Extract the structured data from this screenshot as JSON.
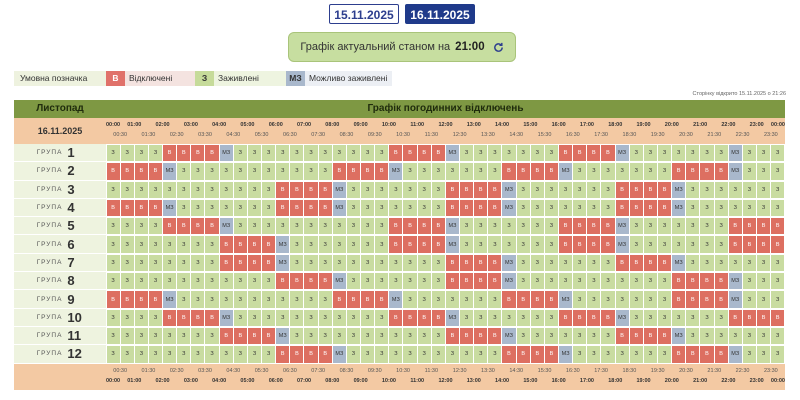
{
  "tabs": [
    {
      "label": "15.11.2025",
      "active": false
    },
    {
      "label": "16.11.2025",
      "active": true
    }
  ],
  "banner": {
    "text": "Графік актуальний станом на",
    "time": "21:00"
  },
  "legend": {
    "caption": "Умовна позначка",
    "off": {
      "symbol": "В",
      "label": "Відключені"
    },
    "on": {
      "symbol": "З",
      "label": "Заживлені"
    },
    "maybe": {
      "symbol": "МЗ",
      "label": "Можливо заживлені"
    }
  },
  "updated": "Сторінку відкрито 15.11.2025 о 21:26",
  "header": {
    "month": "Листопад",
    "title": "Графік погодинних відключень"
  },
  "date_label": "16.11.2025",
  "group_word": "ГРУПА",
  "hours": [
    "00:00",
    "01:00",
    "02:00",
    "03:00",
    "04:00",
    "05:00",
    "06:00",
    "07:00",
    "08:00",
    "09:00",
    "10:00",
    "11:00",
    "12:00",
    "13:00",
    "14:00",
    "15:00",
    "16:00",
    "17:00",
    "18:00",
    "19:00",
    "20:00",
    "21:00",
    "22:00",
    "23:00",
    "00:00"
  ],
  "halves": [
    "00:30",
    "01:30",
    "02:30",
    "03:30",
    "04:30",
    "05:30",
    "06:30",
    "07:30",
    "08:30",
    "09:30",
    "10:30",
    "11:30",
    "12:30",
    "13:30",
    "14:30",
    "15:30",
    "16:30",
    "17:30",
    "18:30",
    "19:30",
    "20:30",
    "21:30",
    "22:30",
    "23:30"
  ],
  "colors": {
    "on": "#c9dca1",
    "off": "#dd6f61",
    "maybe": "#a9b8cc",
    "header": "#7e9843",
    "time_row": "#f3c9a3"
  },
  "groups": [
    {
      "name": "1",
      "slots": [
        [
          0,
          4,
          "on"
        ],
        [
          4,
          8,
          "off"
        ],
        [
          8,
          9,
          "maybe"
        ],
        [
          9,
          20,
          "on"
        ],
        [
          20,
          24,
          "off"
        ],
        [
          24,
          25,
          "maybe"
        ],
        [
          25,
          32,
          "on"
        ],
        [
          32,
          36,
          "off"
        ],
        [
          36,
          37,
          "maybe"
        ],
        [
          37,
          44,
          "on"
        ],
        [
          44,
          45,
          "maybe"
        ],
        [
          45,
          48,
          "on"
        ]
      ]
    },
    {
      "name": "2",
      "slots": [
        [
          0,
          4,
          "off"
        ],
        [
          4,
          5,
          "maybe"
        ],
        [
          5,
          16,
          "on"
        ],
        [
          16,
          20,
          "off"
        ],
        [
          20,
          21,
          "maybe"
        ],
        [
          21,
          28,
          "on"
        ],
        [
          28,
          32,
          "off"
        ],
        [
          32,
          33,
          "maybe"
        ],
        [
          33,
          40,
          "on"
        ],
        [
          40,
          44,
          "off"
        ],
        [
          44,
          45,
          "maybe"
        ],
        [
          45,
          48,
          "on"
        ]
      ]
    },
    {
      "name": "3",
      "slots": [
        [
          0,
          12,
          "on"
        ],
        [
          12,
          16,
          "off"
        ],
        [
          16,
          17,
          "maybe"
        ],
        [
          17,
          24,
          "on"
        ],
        [
          24,
          28,
          "off"
        ],
        [
          28,
          29,
          "maybe"
        ],
        [
          29,
          36,
          "on"
        ],
        [
          36,
          40,
          "off"
        ],
        [
          40,
          41,
          "maybe"
        ],
        [
          41,
          48,
          "on"
        ]
      ]
    },
    {
      "name": "4",
      "slots": [
        [
          0,
          4,
          "off"
        ],
        [
          4,
          5,
          "maybe"
        ],
        [
          5,
          12,
          "on"
        ],
        [
          12,
          16,
          "off"
        ],
        [
          16,
          17,
          "maybe"
        ],
        [
          17,
          24,
          "on"
        ],
        [
          24,
          28,
          "off"
        ],
        [
          28,
          29,
          "maybe"
        ],
        [
          29,
          36,
          "on"
        ],
        [
          36,
          40,
          "off"
        ],
        [
          40,
          41,
          "maybe"
        ],
        [
          41,
          48,
          "on"
        ]
      ]
    },
    {
      "name": "5",
      "slots": [
        [
          0,
          4,
          "on"
        ],
        [
          4,
          8,
          "off"
        ],
        [
          8,
          9,
          "maybe"
        ],
        [
          9,
          20,
          "on"
        ],
        [
          20,
          24,
          "off"
        ],
        [
          24,
          25,
          "maybe"
        ],
        [
          25,
          32,
          "on"
        ],
        [
          32,
          36,
          "off"
        ],
        [
          36,
          37,
          "maybe"
        ],
        [
          37,
          44,
          "on"
        ],
        [
          44,
          48,
          "off"
        ]
      ]
    },
    {
      "name": "6",
      "slots": [
        [
          0,
          8,
          "on"
        ],
        [
          8,
          12,
          "off"
        ],
        [
          12,
          13,
          "maybe"
        ],
        [
          13,
          20,
          "on"
        ],
        [
          20,
          24,
          "off"
        ],
        [
          24,
          25,
          "maybe"
        ],
        [
          25,
          32,
          "on"
        ],
        [
          32,
          36,
          "off"
        ],
        [
          36,
          37,
          "maybe"
        ],
        [
          37,
          44,
          "on"
        ],
        [
          44,
          48,
          "off"
        ]
      ]
    },
    {
      "name": "7",
      "slots": [
        [
          0,
          8,
          "on"
        ],
        [
          8,
          12,
          "off"
        ],
        [
          12,
          13,
          "maybe"
        ],
        [
          13,
          24,
          "on"
        ],
        [
          24,
          28,
          "off"
        ],
        [
          28,
          29,
          "maybe"
        ],
        [
          29,
          36,
          "on"
        ],
        [
          36,
          40,
          "off"
        ],
        [
          40,
          41,
          "maybe"
        ],
        [
          41,
          48,
          "on"
        ]
      ]
    },
    {
      "name": "8",
      "slots": [
        [
          0,
          12,
          "on"
        ],
        [
          12,
          16,
          "off"
        ],
        [
          16,
          17,
          "maybe"
        ],
        [
          17,
          24,
          "on"
        ],
        [
          24,
          28,
          "off"
        ],
        [
          28,
          29,
          "maybe"
        ],
        [
          29,
          40,
          "on"
        ],
        [
          40,
          44,
          "off"
        ],
        [
          44,
          45,
          "maybe"
        ],
        [
          45,
          48,
          "on"
        ]
      ]
    },
    {
      "name": "9",
      "slots": [
        [
          0,
          4,
          "off"
        ],
        [
          4,
          5,
          "maybe"
        ],
        [
          5,
          16,
          "on"
        ],
        [
          16,
          20,
          "off"
        ],
        [
          20,
          21,
          "maybe"
        ],
        [
          21,
          28,
          "on"
        ],
        [
          28,
          32,
          "off"
        ],
        [
          32,
          33,
          "maybe"
        ],
        [
          33,
          40,
          "on"
        ],
        [
          40,
          44,
          "off"
        ],
        [
          44,
          45,
          "maybe"
        ],
        [
          45,
          48,
          "on"
        ]
      ]
    },
    {
      "name": "10",
      "slots": [
        [
          0,
          4,
          "on"
        ],
        [
          4,
          8,
          "off"
        ],
        [
          8,
          9,
          "maybe"
        ],
        [
          9,
          20,
          "on"
        ],
        [
          20,
          24,
          "off"
        ],
        [
          24,
          25,
          "maybe"
        ],
        [
          25,
          32,
          "on"
        ],
        [
          32,
          36,
          "off"
        ],
        [
          36,
          37,
          "maybe"
        ],
        [
          37,
          44,
          "on"
        ],
        [
          44,
          48,
          "off"
        ]
      ]
    },
    {
      "name": "11",
      "slots": [
        [
          0,
          8,
          "on"
        ],
        [
          8,
          12,
          "off"
        ],
        [
          12,
          13,
          "maybe"
        ],
        [
          13,
          24,
          "on"
        ],
        [
          24,
          28,
          "off"
        ],
        [
          28,
          29,
          "maybe"
        ],
        [
          29,
          36,
          "on"
        ],
        [
          36,
          40,
          "off"
        ],
        [
          40,
          41,
          "maybe"
        ],
        [
          41,
          48,
          "on"
        ]
      ]
    },
    {
      "name": "12",
      "slots": [
        [
          0,
          12,
          "on"
        ],
        [
          12,
          16,
          "off"
        ],
        [
          16,
          17,
          "maybe"
        ],
        [
          17,
          28,
          "on"
        ],
        [
          28,
          32,
          "off"
        ],
        [
          32,
          33,
          "maybe"
        ],
        [
          33,
          40,
          "on"
        ],
        [
          40,
          44,
          "off"
        ],
        [
          44,
          45,
          "maybe"
        ],
        [
          45,
          48,
          "on"
        ]
      ]
    }
  ]
}
